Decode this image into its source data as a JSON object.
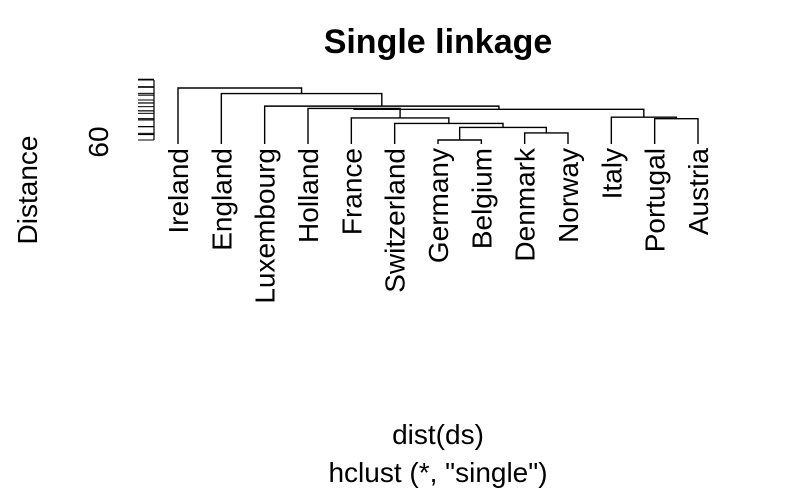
{
  "chart_data": {
    "type": "dendrogram",
    "title": "Single linkage",
    "ylabel": "Distance",
    "xlabel": "dist(ds)",
    "sublabel": "hclust (*, \"single\")",
    "y_tick_label": "60",
    "leaves": [
      "Ireland",
      "England",
      "Luxembourg",
      "Holland",
      "France",
      "Switzerland",
      "Germany",
      "Belgium",
      "Denmark",
      "Norway",
      "Italy",
      "Portugal",
      "Austria"
    ],
    "merges": [
      {
        "left": "Germany",
        "right": "Belgium",
        "height": 58.3
      },
      {
        "left": "Denmark",
        "right": "Norway",
        "height": 59.2
      },
      {
        "left": "Germany+Belgium",
        "right": "Denmark+Norway",
        "height": 59.9
      },
      {
        "left": "Switzerland",
        "right": "Germany+Belgium+Denmark+Norway",
        "height": 60.4
      },
      {
        "left": "Portugal",
        "right": "Austria",
        "height": 61.0
      },
      {
        "left": "Italy",
        "right": "Portugal+Austria",
        "height": 61.2
      },
      {
        "left": "France",
        "right": "Switzerland+Germany+Belgium+Denmark+Norway",
        "height": 61.1
      },
      {
        "left": "Holland",
        "right": "France+Switzerland+Germany+Belgium+Denmark+Norway",
        "height": 62.3
      },
      {
        "left": "Holland+France+Switzerland+Germany+Belgium+Denmark+Norway",
        "right": "Italy+Portugal+Austria",
        "height": 62.2
      },
      {
        "left": "Luxembourg",
        "right": "Holland+France+Switzerland+Germany+Belgium+Denmark+Norway+Italy+Portugal+Austria",
        "height": 62.6
      },
      {
        "left": "England",
        "right": "Luxembourg+Holland+France+Switzerland+Germany+Belgium+Denmark+Norway+Italy+Portugal+Austria",
        "height": 64.2
      },
      {
        "left": "Ireland",
        "right": "England+Luxembourg+Holland+France+Switzerland+Germany+Belgium+Denmark+Norway+Italy+Portugal+Austria",
        "height": 64.9
      }
    ],
    "axis_range": [
      58.3,
      64.9
    ],
    "grid": false
  }
}
